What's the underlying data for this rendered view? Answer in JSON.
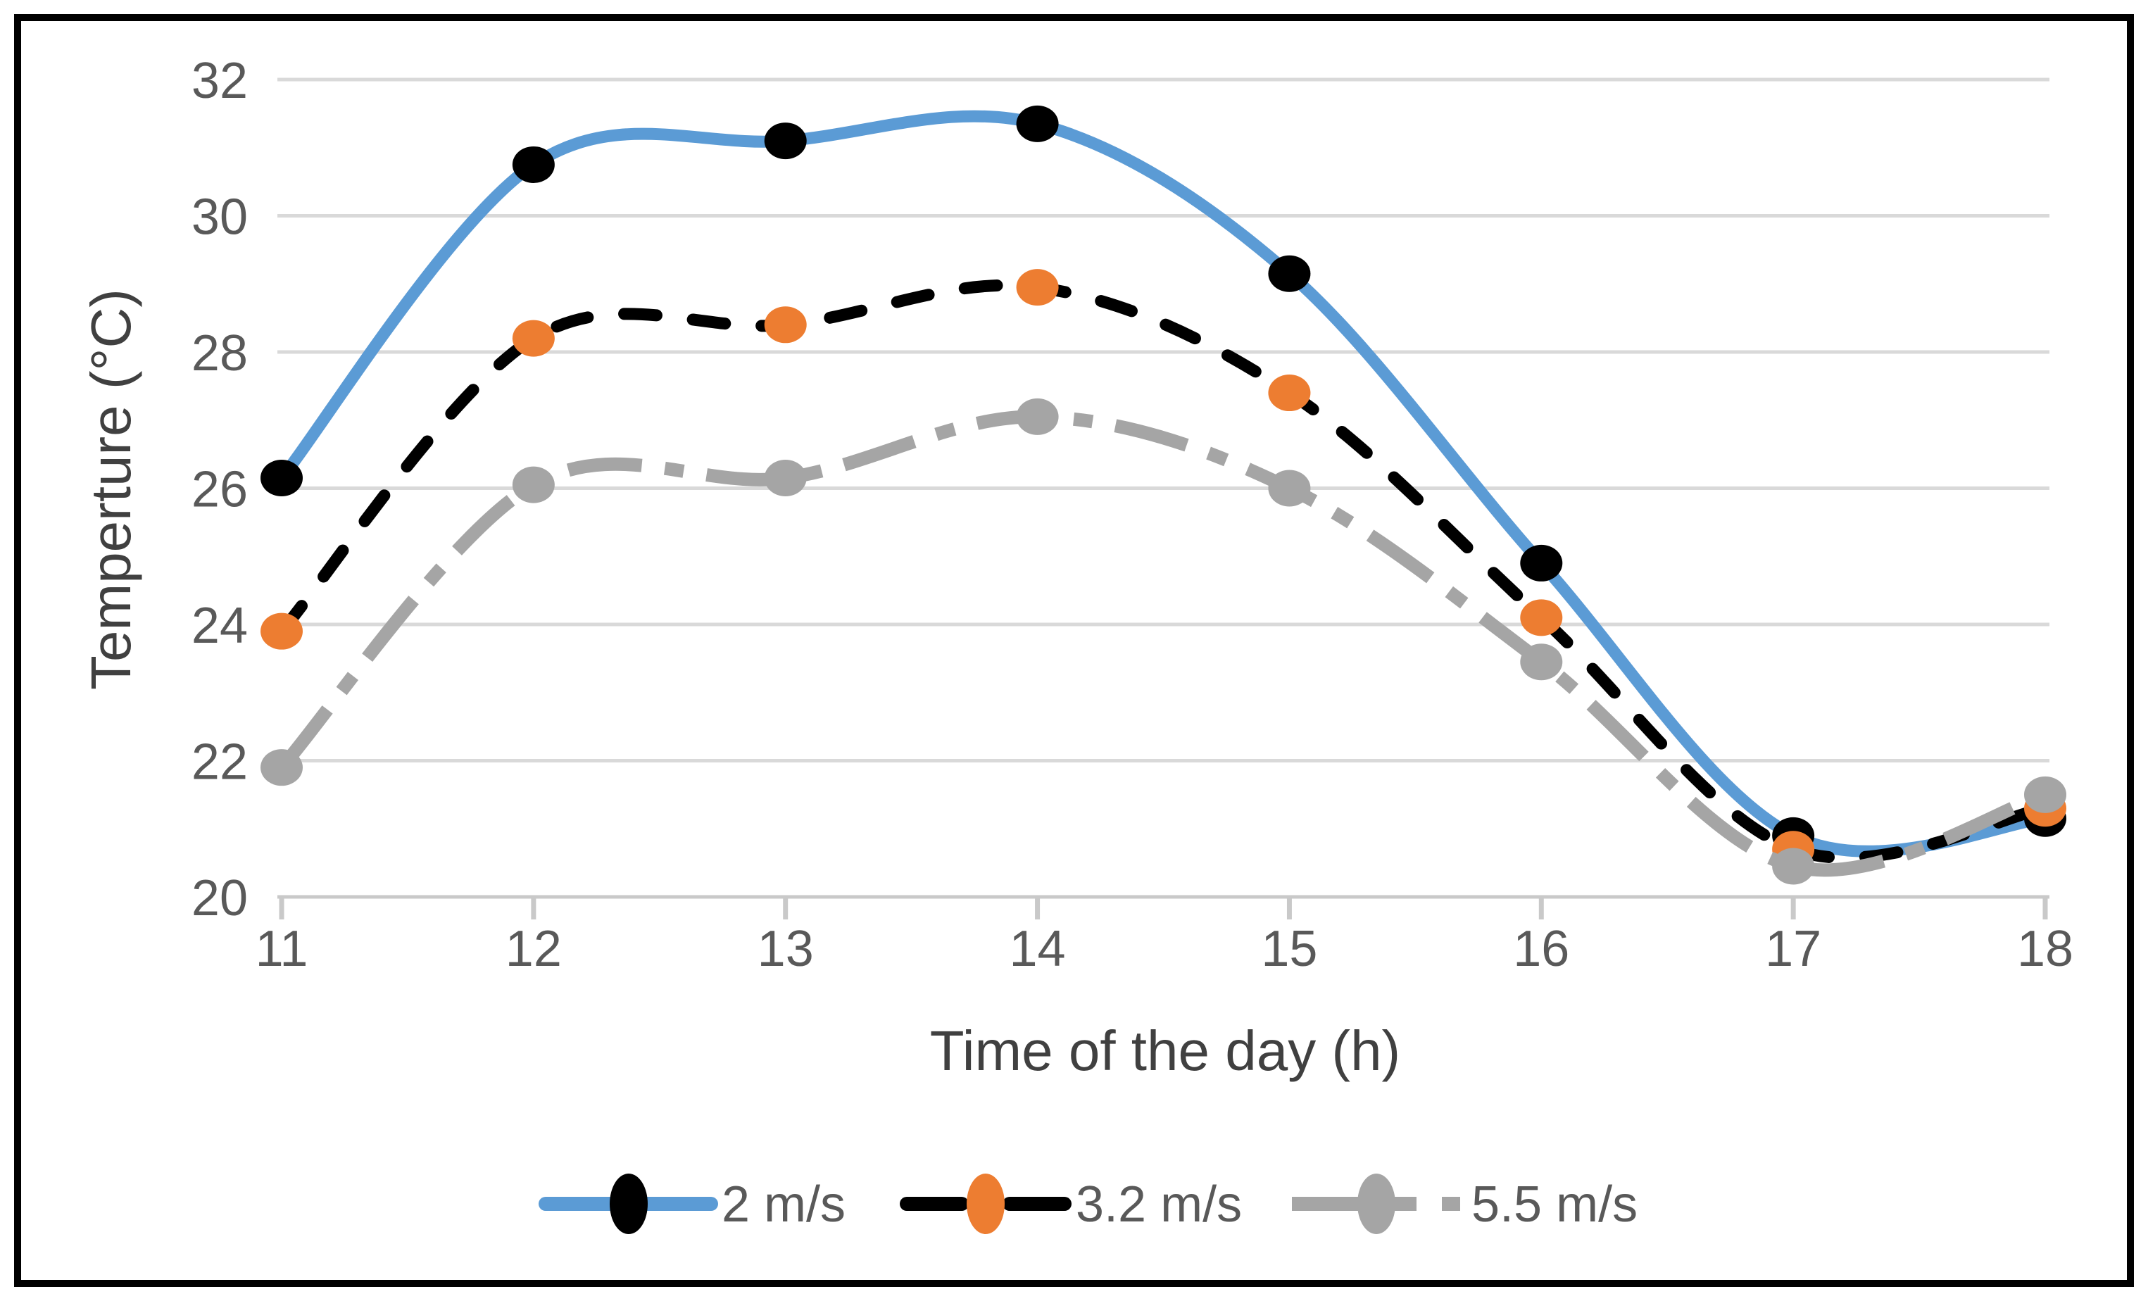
{
  "chart_data": {
    "type": "line",
    "title": "",
    "xlabel": "Time of the day (h)",
    "ylabel": "Temperture (°C)",
    "x": [
      11,
      12,
      13,
      14,
      15,
      16,
      17,
      18
    ],
    "xticks": [
      "11",
      "12",
      "13",
      "14",
      "15",
      "16",
      "17",
      "18"
    ],
    "yticks": [
      "20",
      "22",
      "24",
      "26",
      "28",
      "30",
      "32"
    ],
    "ylim": [
      20,
      32
    ],
    "ytick_step": 2,
    "grid": "horizontal",
    "smooth": true,
    "legend_position": "bottom",
    "series": [
      {
        "name": "2 m/s",
        "values": [
          26.15,
          30.75,
          31.1,
          31.35,
          29.15,
          24.9,
          20.9,
          21.15
        ],
        "line_color": "#5B9BD5",
        "line_style": "solid",
        "marker": "circle",
        "marker_color": "#000000"
      },
      {
        "name": "3.2 m/s",
        "values": [
          23.9,
          28.2,
          28.4,
          28.95,
          27.4,
          24.1,
          20.7,
          21.3
        ],
        "line_color": "#000000",
        "line_style": "dashed",
        "marker": "circle",
        "marker_color": "#ED7D31"
      },
      {
        "name": "5.5 m/s",
        "values": [
          21.9,
          26.05,
          26.15,
          27.05,
          26.0,
          23.45,
          20.45,
          21.5
        ],
        "line_color": "#A5A5A5",
        "line_style": "dash-dot",
        "marker": "circle",
        "marker_color": "#A5A5A5"
      }
    ]
  },
  "colors": {
    "background": "#FFFFFF",
    "figure_border": "#000000",
    "gridline": "#D9D9D9",
    "axis_line": "#C9C9C9",
    "tick_label": "#595959",
    "axis_title": "#404040",
    "legend_text": "#595959"
  }
}
